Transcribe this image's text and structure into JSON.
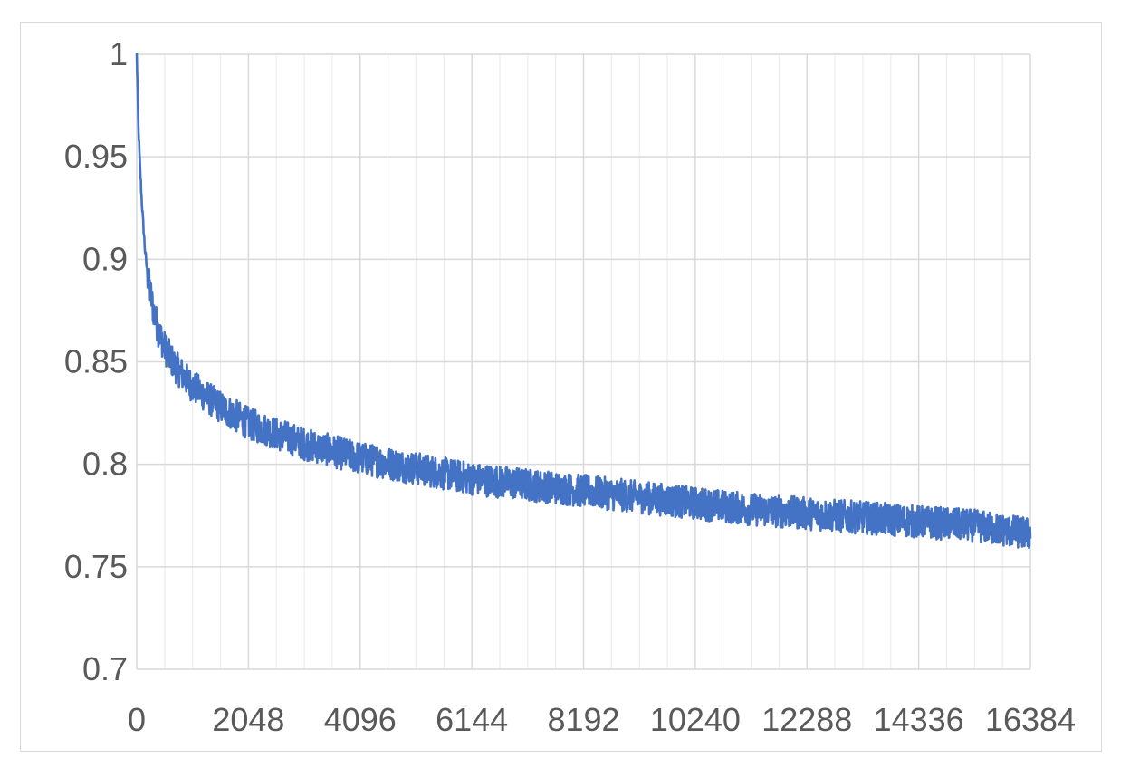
{
  "chart_data": {
    "type": "line",
    "title": "",
    "xlabel": "",
    "ylabel": "",
    "xlim": [
      0,
      16384
    ],
    "ylim": [
      0.7,
      1.0
    ],
    "x_ticks": [
      0,
      2048,
      4096,
      6144,
      8192,
      10240,
      12288,
      14336,
      16384
    ],
    "x_tick_labels": [
      "0",
      "2048",
      "4096",
      "6144",
      "8192",
      "10240",
      "12288",
      "14336",
      "16384"
    ],
    "y_ticks": [
      0.7,
      0.75,
      0.8,
      0.85,
      0.9,
      0.95,
      1.0
    ],
    "y_tick_labels": [
      "0.7",
      "0.75",
      "0.8",
      "0.85",
      "0.9",
      "0.95",
      "1"
    ],
    "grid": true,
    "minor_x_grid_step": 512,
    "legend": "none",
    "series": [
      {
        "color": "#4472c4",
        "noise_amplitude": 0.008,
        "x": [
          0,
          30,
          60,
          100,
          150,
          200,
          256,
          300,
          400,
          512,
          700,
          1024,
          1536,
          2048,
          3072,
          4096,
          5120,
          6144,
          7168,
          8192,
          9216,
          10240,
          11264,
          12288,
          13312,
          14336,
          15360,
          16384
        ],
        "y": [
          1.0,
          0.965,
          0.945,
          0.925,
          0.905,
          0.892,
          0.883,
          0.876,
          0.865,
          0.857,
          0.848,
          0.838,
          0.828,
          0.82,
          0.81,
          0.803,
          0.798,
          0.793,
          0.79,
          0.787,
          0.784,
          0.781,
          0.778,
          0.776,
          0.774,
          0.772,
          0.77,
          0.766
        ]
      }
    ]
  }
}
